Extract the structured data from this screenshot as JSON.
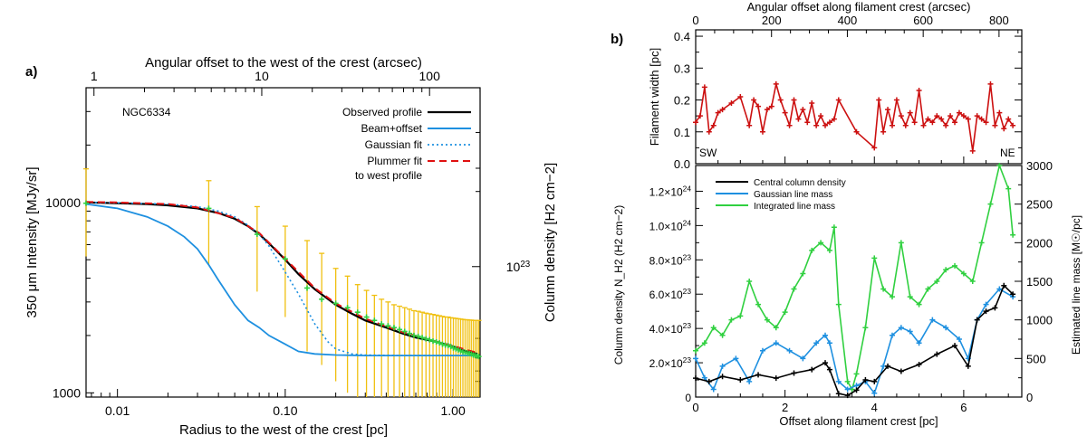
{
  "chart_data": [
    {
      "panel_label": "a)",
      "type": "line",
      "object_label": "NGC6334",
      "xlabel": "Radius to the west of the crest [pc]",
      "xlabel_top": "Angular offset to the west of the crest (arcsec)",
      "ylabel": "350 μm Intensity [MJy/sr]",
      "ylabel_right": "Column density [H2 cm−2]",
      "xscale": "log",
      "yscale": "log",
      "xlim": [
        0.0065,
        1.45
      ],
      "ylim": [
        950,
        40000
      ],
      "x_ticks": [
        "0.01",
        "0.10",
        "1.00"
      ],
      "x_tick_values": [
        0.01,
        0.1,
        1.0
      ],
      "x_top_ticks": [
        "1",
        "10",
        "100"
      ],
      "x_top_tick_values": [
        1,
        10,
        100
      ],
      "y_ticks": [
        "1000",
        "10000"
      ],
      "y_tick_values": [
        1000,
        10000
      ],
      "y_right_ticks": [
        "10^23"
      ],
      "legend": [
        "Observed profile",
        "Beam+offset",
        "Gaussian fit",
        "Plummer fit",
        "to west profile"
      ],
      "colors": {
        "observed": "#000000",
        "beam": "#1e90e0",
        "gauss": "#1e90e0",
        "plummer": "#e01010",
        "errorbar": "#f0c010",
        "points": "#30d040"
      },
      "series": [
        {
          "name": "Observed profile",
          "x": [
            0.0065,
            0.01,
            0.015,
            0.02,
            0.03,
            0.04,
            0.05,
            0.06,
            0.07,
            0.08,
            0.1,
            0.12,
            0.15,
            0.2,
            0.25,
            0.3,
            0.4,
            0.5,
            0.6,
            0.8,
            1.0,
            1.2,
            1.4
          ],
          "values": [
            10000,
            9900,
            9800,
            9650,
            9300,
            8800,
            8200,
            7500,
            6800,
            6100,
            5000,
            4200,
            3500,
            2900,
            2600,
            2400,
            2200,
            2050,
            1950,
            1850,
            1750,
            1650,
            1600
          ]
        },
        {
          "name": "Beam+offset",
          "x": [
            0.0065,
            0.01,
            0.015,
            0.02,
            0.025,
            0.03,
            0.035,
            0.04,
            0.05,
            0.06,
            0.07,
            0.08,
            0.1,
            0.12,
            0.15,
            0.2,
            0.3,
            0.5,
            1.0,
            1.4
          ],
          "values": [
            9800,
            9300,
            8400,
            7500,
            6600,
            5700,
            4700,
            3900,
            2900,
            2400,
            2200,
            2000,
            1800,
            1650,
            1600,
            1580,
            1570,
            1570,
            1570,
            1570
          ]
        },
        {
          "name": "Gaussian fit",
          "x": [
            0.0065,
            0.01,
            0.02,
            0.03,
            0.04,
            0.05,
            0.06,
            0.07,
            0.08,
            0.1,
            0.12,
            0.15,
            0.18,
            0.2,
            0.25,
            0.3,
            0.5,
            1.0,
            1.4
          ],
          "values": [
            10000,
            9950,
            9800,
            9500,
            9000,
            8400,
            7600,
            6800,
            5900,
            4300,
            3300,
            2300,
            1850,
            1700,
            1600,
            1580,
            1570,
            1570,
            1570
          ]
        },
        {
          "name": "Plummer fit",
          "x": [
            0.0065,
            0.01,
            0.02,
            0.03,
            0.05,
            0.07,
            0.1,
            0.15,
            0.2,
            0.3,
            0.5,
            0.8,
            1.0,
            1.4
          ],
          "values": [
            10050,
            10000,
            9800,
            9400,
            8300,
            6900,
            5050,
            3550,
            2950,
            2450,
            2080,
            1860,
            1760,
            1620
          ]
        }
      ],
      "error_points": {
        "x": [
          0.0065,
          0.035,
          0.068,
          0.1,
          0.135,
          0.165,
          0.2,
          0.235,
          0.27,
          0.305,
          0.34,
          0.375,
          0.41,
          0.445,
          0.48,
          0.515,
          0.55,
          0.585,
          0.62,
          0.655,
          0.69,
          0.725,
          0.76,
          0.795,
          0.83,
          0.865,
          0.9,
          0.935,
          0.97,
          1.005,
          1.04,
          1.075,
          1.11,
          1.145,
          1.18,
          1.215,
          1.25,
          1.285,
          1.32,
          1.355,
          1.39,
          1.425
        ],
        "values": [
          9900,
          9300,
          6800,
          5050,
          3550,
          3100,
          2950,
          2800,
          2650,
          2500,
          2400,
          2300,
          2250,
          2200,
          2150,
          2100,
          2050,
          2000,
          1980,
          1950,
          1920,
          1900,
          1870,
          1850,
          1830,
          1800,
          1780,
          1770,
          1750,
          1720,
          1700,
          1680,
          1660,
          1640,
          1630,
          1620,
          1610,
          1600,
          1580,
          1570,
          1560,
          1550
        ],
        "lower": [
          5200,
          4700,
          3400,
          2500,
          1650,
          1400,
          1150,
          1000,
          950,
          950,
          950,
          950,
          950,
          950,
          950,
          950,
          950,
          950,
          950,
          950,
          950,
          950,
          950,
          950,
          950,
          950,
          950,
          950,
          950,
          950,
          950,
          950,
          950,
          950,
          950,
          950,
          950,
          950,
          950,
          950,
          950,
          950
        ],
        "upper": [
          15000,
          13000,
          9500,
          7500,
          6300,
          5400,
          4500,
          4100,
          3700,
          3450,
          3250,
          3100,
          3000,
          2900,
          2850,
          2800,
          2750,
          2700,
          2680,
          2650,
          2620,
          2600,
          2580,
          2560,
          2540,
          2520,
          2500,
          2500,
          2480,
          2470,
          2460,
          2450,
          2440,
          2430,
          2420,
          2420,
          2410,
          2410,
          2400,
          2400,
          2400,
          2400
        ]
      }
    },
    {
      "panel_label": "b)",
      "type": "line",
      "xlabel_top": "Angular offset along filament crest (arcsec)",
      "x_top_ticks": [
        "0",
        "200",
        "400",
        "600",
        "800"
      ],
      "x_top_tick_values": [
        0,
        200,
        400,
        600,
        800
      ],
      "xlim_top": [
        0,
        860
      ],
      "top_panel": {
        "ylabel": "Filament width [pc]",
        "ylim": [
          0,
          0.42
        ],
        "y_ticks": [
          "0.0",
          "0.1",
          "0.2",
          "0.3",
          "0.4"
        ],
        "y_tick_values": [
          0,
          0.1,
          0.2,
          0.3,
          0.4
        ],
        "annotations": [
          "SW",
          "NE"
        ],
        "series": [
          {
            "name": "Filament width",
            "color": "#cc1010",
            "x": [
              0,
              0.1,
              0.2,
              0.3,
              0.4,
              0.5,
              0.6,
              0.8,
              1.0,
              1.2,
              1.3,
              1.4,
              1.5,
              1.6,
              1.7,
              1.8,
              1.9,
              2.0,
              2.1,
              2.2,
              2.3,
              2.4,
              2.5,
              2.6,
              2.7,
              2.8,
              2.9,
              3.0,
              3.1,
              3.2,
              3.6,
              4.0,
              4.1,
              4.2,
              4.3,
              4.4,
              4.5,
              4.6,
              4.7,
              4.8,
              4.9,
              5.0,
              5.1,
              5.2,
              5.3,
              5.4,
              5.5,
              5.6,
              5.7,
              5.8,
              5.9,
              6.0,
              6.1,
              6.2,
              6.3,
              6.4,
              6.5,
              6.6,
              6.7,
              6.8,
              6.9,
              7.0,
              7.1
            ],
            "values": [
              0.13,
              0.15,
              0.24,
              0.1,
              0.12,
              0.16,
              0.17,
              0.19,
              0.21,
              0.12,
              0.2,
              0.18,
              0.1,
              0.17,
              0.18,
              0.25,
              0.2,
              0.16,
              0.12,
              0.2,
              0.14,
              0.17,
              0.13,
              0.19,
              0.12,
              0.15,
              0.12,
              0.13,
              0.14,
              0.2,
              0.1,
              0.05,
              0.2,
              0.1,
              0.17,
              0.12,
              0.2,
              0.15,
              0.12,
              0.16,
              0.13,
              0.23,
              0.12,
              0.14,
              0.13,
              0.15,
              0.14,
              0.12,
              0.15,
              0.13,
              0.16,
              0.15,
              0.14,
              0.04,
              0.15,
              0.14,
              0.13,
              0.25,
              0.12,
              0.16,
              0.11,
              0.14,
              0.12
            ]
          }
        ]
      },
      "bottom_panel": {
        "xlabel": "Offset along filament crest [pc]",
        "xlim": [
          0,
          7.3
        ],
        "x_ticks": [
          "0",
          "2",
          "4",
          "6"
        ],
        "x_tick_values": [
          0,
          2,
          4,
          6
        ],
        "ylabel": "Column density N_H2 (H2 cm−2)",
        "ylim": [
          0,
          1.35e+24
        ],
        "y_ticks": [
          "0",
          "2.0×10^23",
          "4.0×10^23",
          "6.0×10^23",
          "8.0×10^23",
          "1.0×10^24",
          "1.2×10^24"
        ],
        "y_tick_values": [
          0,
          2e+23,
          4e+23,
          6e+23,
          8e+23,
          1e+24,
          1.2e+24
        ],
        "ylabel_right": "Estimated line mass [M☉/pc]",
        "y_right_lim": [
          0,
          3000
        ],
        "y_right_ticks": [
          "0",
          "500",
          "1000",
          "1500",
          "2000",
          "2500",
          "3000"
        ],
        "y_right_tick_values": [
          0,
          500,
          1000,
          1500,
          2000,
          2500,
          3000
        ],
        "legend": [
          "Central column density",
          "Gaussian line mass",
          "Integrated line mass"
        ],
        "series": [
          {
            "name": "Central column density",
            "color": "#000000",
            "axis": "left",
            "x": [
              0,
              0.3,
              0.6,
              1.0,
              1.4,
              1.8,
              2.2,
              2.6,
              2.9,
              3.0,
              3.2,
              3.4,
              3.6,
              3.8,
              4.0,
              4.3,
              4.6,
              5.0,
              5.4,
              5.8,
              6.1,
              6.3,
              6.5,
              6.7,
              6.9,
              7.1
            ],
            "values": [
              1.1e+23,
              9e+22,
              1.2e+23,
              1e+23,
              1.3e+23,
              1.1e+23,
              1.4e+23,
              1.6e+23,
              2e+23,
              1.6e+23,
              2e+22,
              1e+22,
              4e+22,
              1e+23,
              9e+22,
              1.8e+23,
              1.5e+23,
              1.9e+23,
              2.5e+23,
              3e+23,
              1.8e+23,
              4.5e+23,
              5e+23,
              5.2e+23,
              6.5e+23,
              6e+23
            ]
          },
          {
            "name": "Gaussian line mass",
            "color": "#1e90e0",
            "axis": "right",
            "x": [
              0,
              0.2,
              0.4,
              0.6,
              0.9,
              1.2,
              1.5,
              1.8,
              2.1,
              2.4,
              2.7,
              2.9,
              3.0,
              3.2,
              3.4,
              3.6,
              3.8,
              4.0,
              4.2,
              4.4,
              4.6,
              4.8,
              5.0,
              5.3,
              5.6,
              5.9,
              6.1,
              6.3,
              6.5,
              6.8,
              7.1
            ],
            "values": [
              500,
              250,
              100,
              400,
              500,
              200,
              600,
              700,
              600,
              500,
              700,
              800,
              700,
              200,
              100,
              150,
              200,
              50,
              400,
              800,
              900,
              850,
              700,
              1000,
              900,
              750,
              500,
              1000,
              1200,
              1400,
              1300
            ]
          },
          {
            "name": "Integrated line mass",
            "color": "#30d040",
            "axis": "right",
            "x": [
              0,
              0.2,
              0.4,
              0.6,
              0.8,
              1.0,
              1.2,
              1.4,
              1.6,
              1.8,
              2.0,
              2.2,
              2.4,
              2.6,
              2.8,
              3.0,
              3.1,
              3.2,
              3.4,
              3.5,
              3.6,
              3.8,
              4.0,
              4.2,
              4.4,
              4.6,
              4.8,
              5.0,
              5.2,
              5.4,
              5.6,
              5.8,
              6.0,
              6.2,
              6.4,
              6.6,
              6.8,
              7.0,
              7.1
            ],
            "values": [
              600,
              700,
              900,
              800,
              1000,
              1050,
              1500,
              1200,
              1000,
              900,
              1100,
              1400,
              1600,
              1900,
              2000,
              1900,
              2200,
              1200,
              200,
              100,
              300,
              900,
              1800,
              1400,
              1300,
              2000,
              1300,
              1200,
              1400,
              1500,
              1650,
              1700,
              1600,
              1500,
              2000,
              2500,
              3000,
              2700,
              2100
            ]
          }
        ]
      }
    }
  ]
}
